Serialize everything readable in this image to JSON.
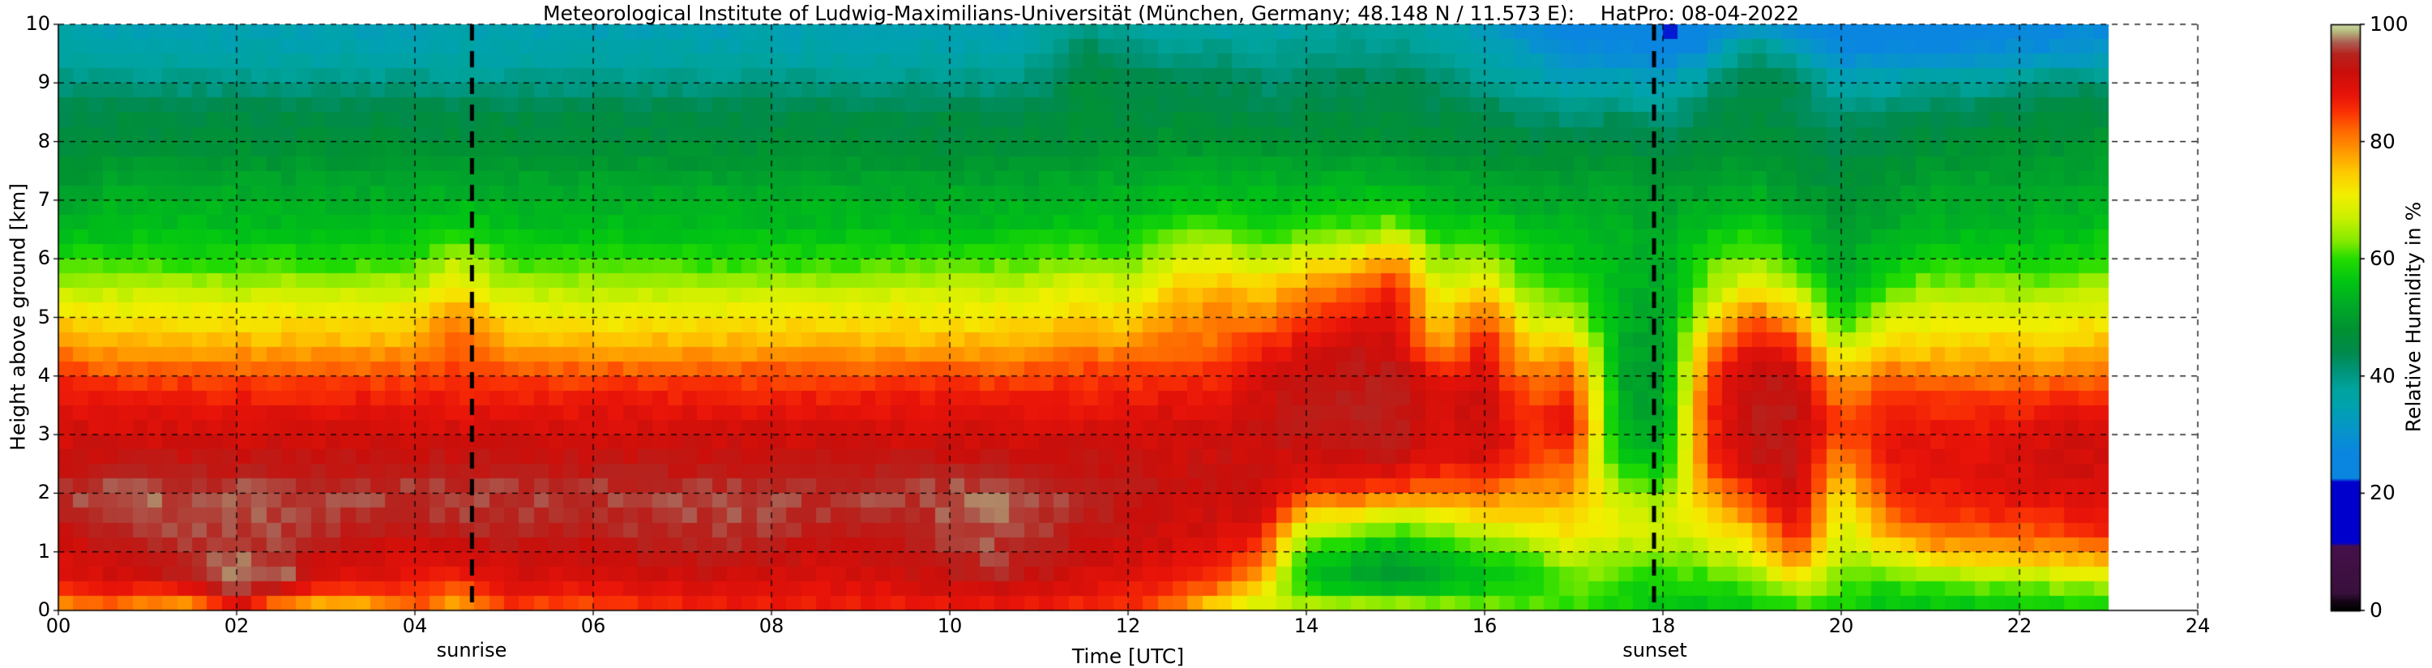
{
  "title": "Meteorological Institute of Ludwig-Maximilians-Universität (München, Germany; 48.148 N / 11.573 E):    HatPro: 08-04-2022",
  "xaxis": {
    "label": "Time [UTC]",
    "tick_values": [
      0,
      2,
      4,
      6,
      8,
      10,
      12,
      14,
      16,
      18,
      20,
      22,
      24
    ],
    "tick_labels": [
      "00",
      "02",
      "04",
      "06",
      "08",
      "10",
      "12",
      "14",
      "16",
      "18",
      "20",
      "22",
      "24"
    ],
    "range": [
      0,
      24
    ],
    "grid": true
  },
  "yaxis": {
    "label": "Height above ground [km]",
    "tick_values": [
      0,
      1,
      2,
      3,
      4,
      5,
      6,
      7,
      8,
      9,
      10
    ],
    "tick_labels": [
      "0",
      "1",
      "2",
      "3",
      "4",
      "5",
      "6",
      "7",
      "8",
      "9",
      "10"
    ],
    "range": [
      0,
      10
    ],
    "grid": true
  },
  "colorbar": {
    "label": "Relative Humidity in %",
    "tick_values": [
      0,
      20,
      40,
      60,
      80,
      100
    ],
    "tick_labels": [
      "0",
      "20",
      "40",
      "60",
      "80",
      "100"
    ],
    "range": [
      0,
      100
    ]
  },
  "annotations": {
    "sunrise": {
      "label": "sunrise",
      "time_hours": 4.64
    },
    "sunset": {
      "label": "sunset",
      "time_hours": 17.9
    }
  },
  "chart_data": {
    "type": "heatmap",
    "title": "Relative humidity time-height cross section",
    "xlabel": "Time [UTC]",
    "ylabel": "Height above ground [km]",
    "x_range_hours": [
      0,
      24
    ],
    "data_end_hour": 23,
    "time_start_hour": 0,
    "time_step_hours": 0.5,
    "height_start_km": 0,
    "height_step_km": 0.5,
    "legend_position": "right",
    "grid": "dashed black, 2 h / 1 km",
    "colormap_stops": [
      [
        0,
        "#000000"
      ],
      [
        1.5,
        "#140414"
      ],
      [
        3,
        "#38103c"
      ],
      [
        11,
        "#46104a"
      ],
      [
        11.6,
        "#0000cd"
      ],
      [
        22,
        "#0000cd"
      ],
      [
        22.6,
        "#0a86e0"
      ],
      [
        27,
        "#0a86e0"
      ],
      [
        31,
        "#0795c9"
      ],
      [
        35,
        "#00a2ae"
      ],
      [
        38,
        "#00a39c"
      ],
      [
        41,
        "#009478"
      ],
      [
        44,
        "#008a4e"
      ],
      [
        48,
        "#009132"
      ],
      [
        52,
        "#00a928"
      ],
      [
        56,
        "#00c414"
      ],
      [
        60,
        "#22dc00"
      ],
      [
        63,
        "#83ea00"
      ],
      [
        67,
        "#c9f000"
      ],
      [
        71,
        "#f2ef00"
      ],
      [
        75,
        "#fec800"
      ],
      [
        79,
        "#ff9000"
      ],
      [
        82,
        "#fe6701"
      ],
      [
        85,
        "#fb3304"
      ],
      [
        88,
        "#e81309"
      ],
      [
        92,
        "#c90f0b"
      ],
      [
        95,
        "#b5241f"
      ],
      [
        97,
        "#ab5e52"
      ],
      [
        99,
        "#b7c183"
      ],
      [
        100,
        "#cdd8a6"
      ]
    ],
    "columns_rh_percent_by_height": [
      [
        78,
        88,
        90,
        93,
        96,
        92,
        91,
        88,
        86,
        80,
        74,
        66,
        60,
        53,
        50,
        48,
        46,
        44,
        41,
        38,
        35
      ],
      [
        80,
        90,
        92,
        95,
        97,
        93,
        91,
        88,
        84,
        77,
        72,
        66,
        59,
        55,
        53,
        50,
        47,
        45,
        40,
        36,
        34
      ],
      [
        76,
        91,
        93,
        96,
        97,
        93,
        91,
        88,
        84,
        77,
        72,
        66,
        59,
        55,
        53,
        50,
        47,
        45,
        40,
        36,
        34
      ],
      [
        74,
        94,
        96,
        96,
        97,
        93,
        91,
        88,
        84,
        77,
        72,
        66,
        59,
        55,
        53,
        50,
        47,
        45,
        40,
        36,
        34
      ],
      [
        88,
        99,
        97,
        96,
        97,
        93,
        91,
        88,
        84,
        77,
        72,
        66,
        59,
        55,
        53,
        50,
        47,
        45,
        40,
        36,
        34
      ],
      [
        75,
        98,
        95,
        96,
        96,
        93,
        91,
        88,
        84,
        77,
        72,
        66,
        60,
        55,
        53,
        50,
        47,
        45,
        40,
        36,
        34
      ],
      [
        72,
        90,
        92,
        96,
        96,
        93,
        91,
        88,
        84,
        77,
        72,
        66,
        59,
        55,
        53,
        50,
        47,
        45,
        40,
        36,
        34
      ],
      [
        74,
        89,
        91,
        95,
        96,
        93,
        91,
        88,
        84,
        77,
        72,
        66,
        59,
        55,
        53,
        50,
        47,
        45,
        40,
        36,
        34
      ],
      [
        82,
        88,
        91,
        94,
        96,
        93,
        91,
        88,
        84,
        78,
        73,
        67,
        60,
        55,
        53,
        50,
        47,
        45,
        40,
        36,
        34
      ],
      [
        74,
        86,
        92,
        95,
        96,
        93,
        91,
        88,
        85,
        84,
        80,
        72,
        66,
        58,
        54,
        50,
        47,
        45,
        40,
        36,
        34
      ],
      [
        84,
        90,
        92,
        95,
        96,
        93,
        91,
        88,
        84,
        78,
        72,
        66,
        60,
        55,
        53,
        50,
        47,
        45,
        40,
        36,
        34
      ],
      [
        82,
        90,
        92,
        95,
        96,
        93,
        91,
        88,
        84,
        77,
        71,
        66,
        59,
        55,
        53,
        50,
        47,
        45,
        40,
        36,
        34
      ],
      [
        82,
        90,
        92,
        95,
        96,
        93,
        91,
        88,
        84,
        77,
        71,
        66,
        59,
        55,
        53,
        50,
        47,
        45,
        40,
        36,
        34
      ],
      [
        84,
        91,
        94,
        95,
        96,
        93,
        91,
        88,
        84,
        77,
        71,
        66,
        59,
        55,
        53,
        50,
        47,
        45,
        40,
        36,
        34
      ],
      [
        85,
        91,
        94,
        96,
        96,
        93,
        91,
        88,
        84,
        77,
        72,
        66,
        59,
        55,
        53,
        50,
        47,
        45,
        40,
        36,
        34
      ],
      [
        86,
        91,
        94,
        96,
        96,
        93,
        91,
        88,
        84,
        77,
        72,
        66,
        59,
        55,
        53,
        50,
        47,
        45,
        40,
        36,
        34
      ],
      [
        86,
        90,
        93,
        96,
        96,
        93,
        91,
        88,
        84,
        77,
        72,
        66,
        59,
        55,
        53,
        50,
        47,
        45,
        40,
        36,
        34
      ],
      [
        86,
        90,
        92,
        95,
        96,
        93,
        91,
        88,
        84,
        77,
        72,
        66,
        59,
        55,
        53,
        50,
        47,
        45,
        40,
        36,
        34
      ],
      [
        86,
        90,
        92,
        95,
        96,
        93,
        91,
        88,
        84,
        77,
        72,
        67,
        60,
        55,
        53,
        50,
        47,
        45,
        40,
        36,
        34
      ],
      [
        86,
        91,
        93,
        95,
        96,
        93,
        91,
        88,
        84,
        77,
        72,
        67,
        60,
        55,
        53,
        50,
        47,
        45,
        40,
        36,
        34
      ],
      [
        86,
        93,
        95,
        96,
        97,
        93,
        91,
        88,
        84,
        77,
        72,
        67,
        60,
        55,
        53,
        50,
        47,
        45,
        40,
        36,
        34
      ],
      [
        86,
        94,
        96,
        97,
        97,
        93,
        91,
        88,
        84,
        77,
        72,
        67,
        60,
        55,
        53,
        50,
        47,
        45,
        40,
        36,
        34
      ],
      [
        86,
        92,
        95,
        96,
        96,
        93,
        91,
        88,
        84,
        78,
        73,
        68,
        61,
        56,
        53,
        50,
        47,
        45,
        41,
        38,
        36
      ],
      [
        85,
        90,
        92,
        94,
        95,
        93,
        91,
        88,
        85,
        80,
        74,
        70,
        62,
        57,
        54,
        51,
        48,
        47,
        47,
        44,
        40
      ],
      [
        85,
        89,
        91,
        93,
        94,
        92,
        91,
        88,
        85,
        79,
        73,
        68,
        61,
        56,
        54,
        51,
        48,
        46,
        45,
        40,
        38
      ],
      [
        80,
        88,
        90,
        92,
        92,
        92,
        91,
        89,
        86,
        82,
        78,
        74,
        68,
        60,
        55,
        52,
        49,
        46,
        44,
        40,
        36
      ],
      [
        70,
        85,
        89,
        91,
        92,
        92,
        91,
        89,
        86,
        82,
        80,
        76,
        70,
        62,
        56,
        52,
        49,
        46,
        44,
        40,
        36
      ],
      [
        66,
        76,
        84,
        90,
        92,
        92,
        92,
        92,
        90,
        86,
        80,
        74,
        66,
        58,
        55,
        52,
        48,
        44,
        42,
        38,
        36
      ],
      [
        68,
        55,
        58,
        70,
        85,
        91,
        93,
        93,
        93,
        90,
        85,
        78,
        70,
        60,
        55,
        52,
        48,
        45,
        42,
        40,
        36
      ],
      [
        68,
        52,
        55,
        68,
        84,
        92,
        94,
        94,
        93,
        92,
        88,
        82,
        72,
        62,
        56,
        52,
        48,
        46,
        44,
        40,
        38
      ],
      [
        68,
        50,
        52,
        65,
        83,
        92,
        94,
        94,
        94,
        92,
        90,
        86,
        78,
        64,
        56,
        52,
        48,
        46,
        44,
        40,
        38
      ],
      [
        66,
        52,
        56,
        66,
        80,
        88,
        90,
        90,
        88,
        78,
        72,
        68,
        62,
        58,
        54,
        51,
        47,
        45,
        42,
        38,
        36
      ],
      [
        64,
        55,
        60,
        70,
        82,
        90,
        92,
        92,
        90,
        88,
        84,
        74,
        64,
        58,
        54,
        50,
        46,
        44,
        40,
        36,
        32
      ],
      [
        62,
        58,
        62,
        72,
        78,
        84,
        86,
        84,
        80,
        74,
        68,
        62,
        58,
        55,
        52,
        50,
        46,
        42,
        38,
        32,
        28
      ],
      [
        60,
        62,
        68,
        74,
        78,
        82,
        88,
        88,
        84,
        76,
        66,
        60,
        56,
        54,
        52,
        49,
        46,
        40,
        34,
        28,
        26
      ],
      [
        58,
        60,
        66,
        70,
        66,
        58,
        54,
        52,
        52,
        52,
        53,
        54,
        54,
        53,
        52,
        50,
        46,
        42,
        36,
        28,
        26
      ],
      [
        55,
        58,
        64,
        68,
        62,
        56,
        52,
        50,
        50,
        50,
        51,
        52,
        52,
        52,
        50,
        48,
        44,
        40,
        33,
        26,
        20
      ],
      [
        55,
        60,
        66,
        72,
        78,
        84,
        86,
        86,
        84,
        78,
        70,
        64,
        60,
        56,
        52,
        50,
        46,
        44,
        40,
        30,
        26
      ],
      [
        56,
        62,
        70,
        78,
        86,
        92,
        93,
        94,
        93,
        90,
        82,
        72,
        64,
        58,
        54,
        50,
        48,
        46,
        46,
        42,
        30
      ],
      [
        58,
        70,
        84,
        90,
        92,
        93,
        93,
        93,
        92,
        86,
        76,
        66,
        58,
        54,
        50,
        48,
        46,
        44,
        44,
        36,
        26
      ],
      [
        58,
        62,
        66,
        68,
        72,
        78,
        84,
        82,
        76,
        66,
        58,
        53,
        52,
        50,
        48,
        46,
        44,
        42,
        36,
        28,
        25
      ],
      [
        55,
        60,
        70,
        80,
        85,
        88,
        88,
        86,
        82,
        74,
        68,
        60,
        55,
        52,
        50,
        48,
        46,
        42,
        36,
        28,
        25
      ],
      [
        55,
        62,
        76,
        84,
        88,
        89,
        88,
        86,
        80,
        74,
        70,
        64,
        58,
        54,
        52,
        50,
        47,
        44,
        38,
        28,
        25
      ],
      [
        55,
        63,
        77,
        85,
        88,
        89,
        88,
        86,
        80,
        76,
        70,
        64,
        58,
        54,
        52,
        50,
        47,
        44,
        38,
        29,
        25
      ],
      [
        56,
        64,
        78,
        85,
        89,
        90,
        89,
        86,
        80,
        74,
        70,
        64,
        58,
        54,
        52,
        50,
        48,
        45,
        40,
        30,
        26
      ],
      [
        57,
        65,
        79,
        86,
        89,
        92,
        91,
        87,
        81,
        75,
        70,
        64,
        58,
        54,
        52,
        50,
        48,
        46,
        42,
        30,
        26
      ],
      [
        58,
        66,
        80,
        88,
        90,
        91,
        90,
        87,
        82,
        76,
        72,
        66,
        60,
        56,
        54,
        52,
        50,
        46,
        42,
        32,
        28
      ]
    ]
  },
  "layout_note": "values are RH % per 0.5 h column from 00:00 to 23:00, each column bottom(0 km) to top(10 km) in 0.5 km steps"
}
